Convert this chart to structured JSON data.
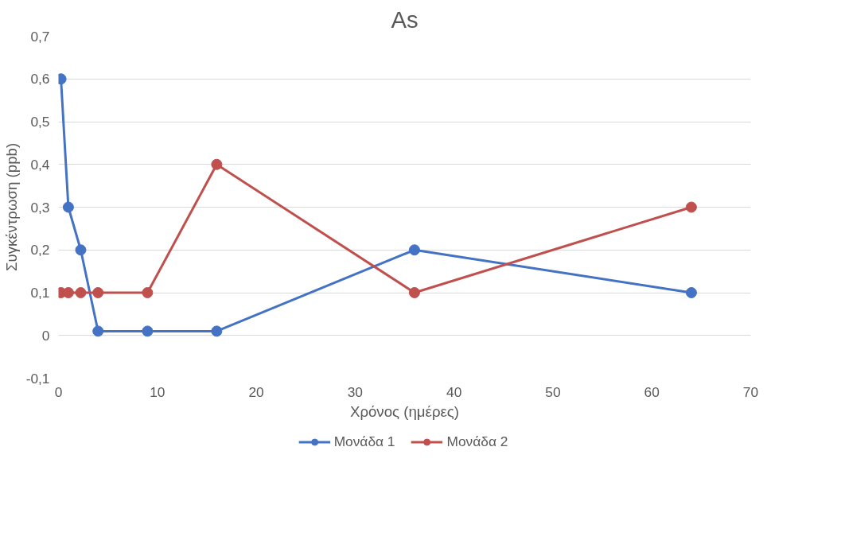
{
  "chart_data": {
    "type": "line",
    "title": "As",
    "xlabel": "Χρόνος (ημέρες)",
    "ylabel": "Συγκέντρωση (ppb)",
    "x": [
      0.25,
      1,
      2.25,
      4,
      9,
      16,
      36,
      64
    ],
    "series": [
      {
        "name": "Μονάδα 1",
        "color": "#4472c4",
        "values": [
          0.6,
          0.3,
          0.2,
          0.01,
          0.01,
          0.01,
          0.2,
          0.1
        ]
      },
      {
        "name": "Μονάδα 2",
        "color": "#c0504d",
        "values": [
          0.1,
          0.1,
          0.1,
          0.1,
          0.1,
          0.4,
          0.1,
          0.3
        ]
      }
    ],
    "xlim": [
      0,
      70
    ],
    "xticks": [
      0,
      10,
      20,
      30,
      40,
      50,
      60,
      70
    ],
    "ylim": [
      -0.1,
      0.7
    ],
    "yticks": [
      {
        "value": -0.1,
        "label": "-0,1"
      },
      {
        "value": 0,
        "label": "0"
      },
      {
        "value": 0.1,
        "label": "0,1"
      },
      {
        "value": 0.2,
        "label": "0,2"
      },
      {
        "value": 0.3,
        "label": "0,3"
      },
      {
        "value": 0.4,
        "label": "0,4"
      },
      {
        "value": 0.5,
        "label": "0,5"
      },
      {
        "value": 0.6,
        "label": "0,6"
      },
      {
        "value": 0.7,
        "label": "0,7"
      }
    ],
    "grid": "y",
    "legend": "bottom",
    "marker": "circle",
    "line_style": "solid"
  }
}
